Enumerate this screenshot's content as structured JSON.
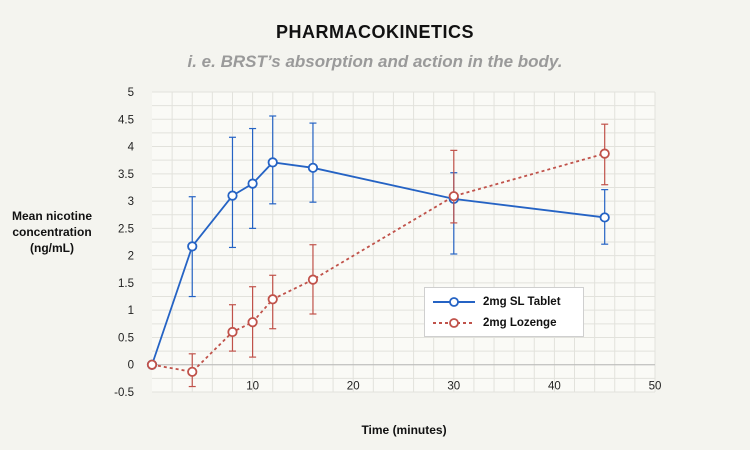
{
  "header": {
    "title": "PHARMACOKINETICS",
    "subtitle": "i. e. BRST’s absorption and action in the body."
  },
  "axes": {
    "ylabel_lines": [
      "Mean nicotine",
      "concentration",
      "(ng/mL)"
    ],
    "xlabel": "Time (minutes)"
  },
  "legend": {
    "items": [
      "2mg SL Tablet",
      "2mg Lozenge"
    ]
  },
  "colors": {
    "tablet": "#2563c4",
    "lozenge": "#c0524a",
    "grid": "#e2e2dc",
    "background": "#f4f4ef"
  },
  "chart_data": {
    "type": "line",
    "title": "PHARMACOKINETICS",
    "subtitle": "i. e. BRST’s absorption and action in the body.",
    "xlabel": "Time (minutes)",
    "ylabel": "Mean nicotine concentration (ng/mL)",
    "xlim": [
      0,
      50
    ],
    "ylim": [
      -0.5,
      5
    ],
    "xticks": [
      10,
      20,
      30,
      40,
      50
    ],
    "yticks": [
      -0.5,
      0,
      0.5,
      1,
      1.5,
      2,
      2.5,
      3,
      3.5,
      4,
      4.5,
      5
    ],
    "ytick_labels": [
      "-0.5",
      "0",
      "0.5",
      "1",
      "1.5",
      "2",
      "2.5",
      "3",
      "3.5",
      "4",
      "4.5",
      "5"
    ],
    "grid": true,
    "legend_position": "bottom-right",
    "series": [
      {
        "name": "2mg SL Tablet",
        "style": "solid",
        "x": [
          0,
          4,
          8,
          10,
          12,
          16,
          30,
          45
        ],
        "y": [
          0,
          2.17,
          3.1,
          3.32,
          3.71,
          3.61,
          3.04,
          2.7
        ],
        "err_low": [
          0,
          1.25,
          2.15,
          2.5,
          2.95,
          2.98,
          2.03,
          2.21
        ],
        "err_high": [
          0,
          3.08,
          4.17,
          4.33,
          4.56,
          4.43,
          3.52,
          3.21
        ]
      },
      {
        "name": "2mg Lozenge",
        "style": "dashed",
        "x": [
          0,
          4,
          8,
          10,
          12,
          16,
          30,
          45
        ],
        "y": [
          0,
          -0.13,
          0.6,
          0.78,
          1.2,
          1.56,
          3.09,
          3.87
        ],
        "err_low": [
          0,
          -0.4,
          0.25,
          0.14,
          0.66,
          0.93,
          2.6,
          3.3
        ],
        "err_high": [
          0,
          0.2,
          1.1,
          1.43,
          1.64,
          2.2,
          3.93,
          4.41
        ]
      }
    ]
  }
}
